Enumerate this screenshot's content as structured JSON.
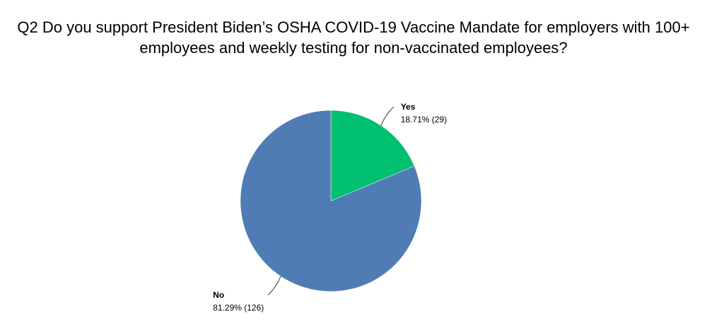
{
  "chart_data": {
    "type": "pie",
    "title": "Q2 Do you support President Biden’s OSHA COVID-19 Vaccine Mandate for employers with 100+ employees and weekly testing for non-vaccinated employees?",
    "categories": [
      "Yes",
      "No"
    ],
    "values": [
      18.71,
      81.29
    ],
    "value_labels": [
      "18.71% (29)",
      "81.29% (126)"
    ],
    "colors": [
      "#00bf6f",
      "#4f7cb5"
    ]
  }
}
